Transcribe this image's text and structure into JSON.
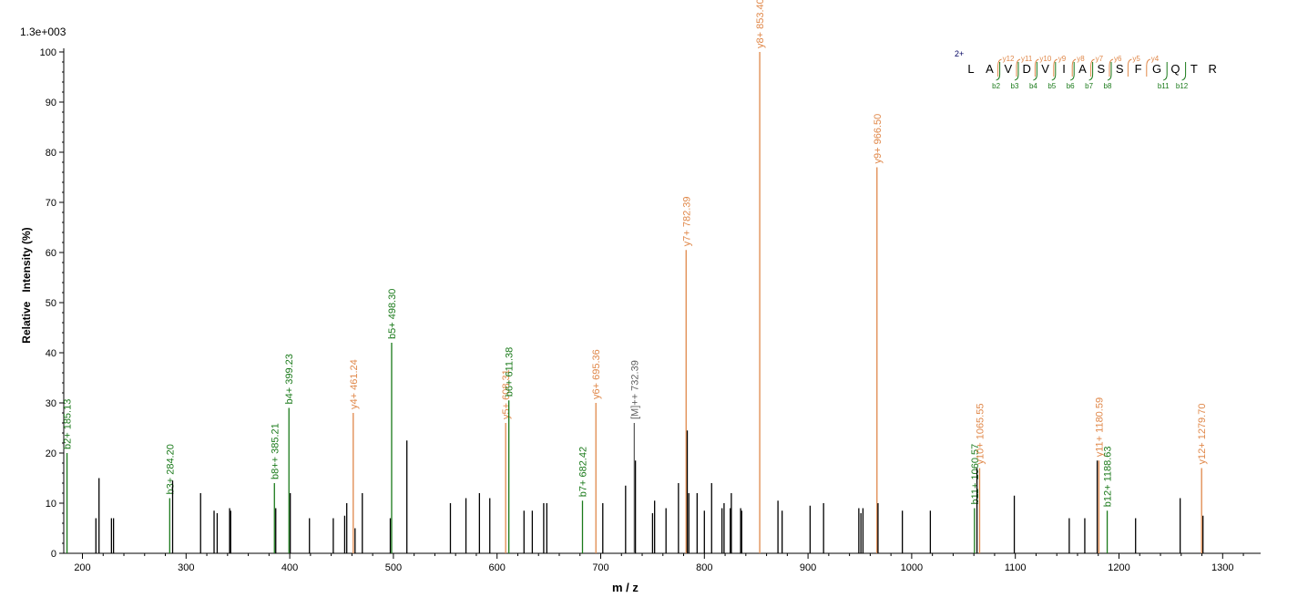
{
  "chart_data": {
    "type": "bar",
    "subtype": "mass-spectrum",
    "scale_label": "1.3e+003",
    "xlabel": "m / z",
    "ylabel": "Relative   Intensity (%)",
    "xlim": [
      170,
      1390
    ],
    "ylim": [
      0,
      100
    ],
    "xticks": [
      200,
      300,
      400,
      500,
      600,
      700,
      800,
      900,
      1000,
      1100,
      1200,
      1300
    ],
    "yticks": [
      0,
      10,
      20,
      30,
      40,
      50,
      60,
      70,
      80,
      90,
      100
    ],
    "colors": {
      "b_ion": "#1a7a1a",
      "y_ion": "#e0884a",
      "precursor": "#606060",
      "unassigned": "#000000"
    },
    "peaks": [
      {
        "mz": 185.13,
        "intensity": 20,
        "type": "b",
        "label": "b2+ 185.13"
      },
      {
        "mz": 213,
        "intensity": 7,
        "type": "u"
      },
      {
        "mz": 216,
        "intensity": 15,
        "type": "u"
      },
      {
        "mz": 228,
        "intensity": 7,
        "type": "u"
      },
      {
        "mz": 230,
        "intensity": 7,
        "type": "u"
      },
      {
        "mz": 284.2,
        "intensity": 11,
        "type": "b",
        "label": "b3+ 284.20"
      },
      {
        "mz": 287,
        "intensity": 14.5,
        "type": "u"
      },
      {
        "mz": 314,
        "intensity": 12,
        "type": "u"
      },
      {
        "mz": 327,
        "intensity": 8.5,
        "type": "u"
      },
      {
        "mz": 330,
        "intensity": 8,
        "type": "u"
      },
      {
        "mz": 342,
        "intensity": 9,
        "type": "u"
      },
      {
        "mz": 343,
        "intensity": 8.5,
        "type": "u"
      },
      {
        "mz": 385.21,
        "intensity": 14,
        "type": "b",
        "label": "b8++ 385.21"
      },
      {
        "mz": 386.5,
        "intensity": 9,
        "type": "u"
      },
      {
        "mz": 399.23,
        "intensity": 29,
        "type": "b",
        "label": "b4+ 399.23"
      },
      {
        "mz": 400.5,
        "intensity": 12,
        "type": "u"
      },
      {
        "mz": 419,
        "intensity": 7,
        "type": "u"
      },
      {
        "mz": 442,
        "intensity": 7,
        "type": "u"
      },
      {
        "mz": 453,
        "intensity": 7.5,
        "type": "u"
      },
      {
        "mz": 455,
        "intensity": 10,
        "type": "u"
      },
      {
        "mz": 461.24,
        "intensity": 28,
        "type": "y",
        "label": "y4+ 461.24"
      },
      {
        "mz": 463,
        "intensity": 5,
        "type": "u"
      },
      {
        "mz": 470,
        "intensity": 12,
        "type": "u"
      },
      {
        "mz": 497,
        "intensity": 7,
        "type": "u"
      },
      {
        "mz": 498.3,
        "intensity": 42,
        "type": "b",
        "label": "b5+ 498.30"
      },
      {
        "mz": 513,
        "intensity": 22.5,
        "type": "u"
      },
      {
        "mz": 555,
        "intensity": 10,
        "type": "u"
      },
      {
        "mz": 570,
        "intensity": 11,
        "type": "u"
      },
      {
        "mz": 583,
        "intensity": 12,
        "type": "u"
      },
      {
        "mz": 593,
        "intensity": 11,
        "type": "u"
      },
      {
        "mz": 608.31,
        "intensity": 26,
        "type": "y",
        "label": "y5+ 608.31"
      },
      {
        "mz": 611.38,
        "intensity": 30.5,
        "type": "b",
        "label": "b6+ 611.38"
      },
      {
        "mz": 626,
        "intensity": 8.5,
        "type": "u"
      },
      {
        "mz": 634,
        "intensity": 8.5,
        "type": "u"
      },
      {
        "mz": 645,
        "intensity": 10,
        "type": "u"
      },
      {
        "mz": 648,
        "intensity": 10,
        "type": "u"
      },
      {
        "mz": 682.42,
        "intensity": 10.5,
        "type": "b",
        "label": "b7+ 682.42"
      },
      {
        "mz": 695.36,
        "intensity": 30,
        "type": "y",
        "label": "y6+ 695.36"
      },
      {
        "mz": 702,
        "intensity": 10,
        "type": "u"
      },
      {
        "mz": 724,
        "intensity": 13.5,
        "type": "u"
      },
      {
        "mz": 732.39,
        "intensity": 26,
        "type": "p",
        "label": "[M]++ 732.39"
      },
      {
        "mz": 733.5,
        "intensity": 18.5,
        "type": "u"
      },
      {
        "mz": 750,
        "intensity": 8,
        "type": "u"
      },
      {
        "mz": 752,
        "intensity": 10.5,
        "type": "u"
      },
      {
        "mz": 763,
        "intensity": 9,
        "type": "u"
      },
      {
        "mz": 775,
        "intensity": 14,
        "type": "u"
      },
      {
        "mz": 782.39,
        "intensity": 60.5,
        "type": "y",
        "label": "y7+ 782.39"
      },
      {
        "mz": 783.5,
        "intensity": 24.5,
        "type": "u"
      },
      {
        "mz": 785,
        "intensity": 12,
        "type": "u"
      },
      {
        "mz": 793,
        "intensity": 12,
        "type": "u"
      },
      {
        "mz": 800,
        "intensity": 8.5,
        "type": "u"
      },
      {
        "mz": 807,
        "intensity": 14,
        "type": "u"
      },
      {
        "mz": 817,
        "intensity": 9,
        "type": "u"
      },
      {
        "mz": 819,
        "intensity": 10,
        "type": "u"
      },
      {
        "mz": 825,
        "intensity": 9,
        "type": "u"
      },
      {
        "mz": 826,
        "intensity": 12,
        "type": "u"
      },
      {
        "mz": 835,
        "intensity": 9,
        "type": "u"
      },
      {
        "mz": 836,
        "intensity": 8.5,
        "type": "u"
      },
      {
        "mz": 853.4,
        "intensity": 100,
        "type": "y",
        "label": "y8+ 853.40"
      },
      {
        "mz": 871,
        "intensity": 10.5,
        "type": "u"
      },
      {
        "mz": 875,
        "intensity": 8.5,
        "type": "u"
      },
      {
        "mz": 902,
        "intensity": 9.5,
        "type": "u"
      },
      {
        "mz": 915,
        "intensity": 10,
        "type": "u"
      },
      {
        "mz": 949,
        "intensity": 9,
        "type": "u"
      },
      {
        "mz": 951,
        "intensity": 8,
        "type": "u"
      },
      {
        "mz": 953,
        "intensity": 9,
        "type": "u"
      },
      {
        "mz": 966.5,
        "intensity": 77,
        "type": "y",
        "label": "y9+ 966.50"
      },
      {
        "mz": 967.5,
        "intensity": 10,
        "type": "u"
      },
      {
        "mz": 991,
        "intensity": 8.5,
        "type": "u"
      },
      {
        "mz": 1018,
        "intensity": 8.5,
        "type": "u"
      },
      {
        "mz": 1060.57,
        "intensity": 9,
        "type": "b",
        "label": "b11+ 1060.57"
      },
      {
        "mz": 1063,
        "intensity": 17,
        "type": "u"
      },
      {
        "mz": 1065.55,
        "intensity": 17,
        "type": "y",
        "label": "y10+ 1065.55"
      },
      {
        "mz": 1099,
        "intensity": 11.5,
        "type": "u"
      },
      {
        "mz": 1152,
        "intensity": 7,
        "type": "u"
      },
      {
        "mz": 1167,
        "intensity": 7,
        "type": "u"
      },
      {
        "mz": 1179,
        "intensity": 18.5,
        "type": "u"
      },
      {
        "mz": 1180.59,
        "intensity": 18.5,
        "type": "y",
        "label": "y11+ 1180.59"
      },
      {
        "mz": 1188.63,
        "intensity": 8.5,
        "type": "b",
        "label": "b12+ 1188.63"
      },
      {
        "mz": 1216,
        "intensity": 7,
        "type": "u"
      },
      {
        "mz": 1259,
        "intensity": 11,
        "type": "u"
      },
      {
        "mz": 1279.7,
        "intensity": 17,
        "type": "y",
        "label": "y12+ 1279.70"
      },
      {
        "mz": 1281,
        "intensity": 7.5,
        "type": "u"
      }
    ],
    "sequence_annotation": {
      "charge": "2+",
      "residues": [
        "L",
        "A",
        "V",
        "D",
        "V",
        "I",
        "A",
        "S",
        "S",
        "F",
        "G",
        "Q",
        "T",
        "R"
      ],
      "y_ions": [
        {
          "label": "y12",
          "pos": 2
        },
        {
          "label": "y11",
          "pos": 3
        },
        {
          "label": "y10",
          "pos": 4
        },
        {
          "label": "y9",
          "pos": 5
        },
        {
          "label": "y8",
          "pos": 6
        },
        {
          "label": "y7",
          "pos": 7
        },
        {
          "label": "y6",
          "pos": 8
        },
        {
          "label": "y5",
          "pos": 9
        },
        {
          "label": "y4",
          "pos": 10
        }
      ],
      "b_ions": [
        {
          "label": "b2",
          "pos": 2
        },
        {
          "label": "b3",
          "pos": 3
        },
        {
          "label": "b4",
          "pos": 4
        },
        {
          "label": "b5",
          "pos": 5
        },
        {
          "label": "b6",
          "pos": 6
        },
        {
          "label": "b7",
          "pos": 7
        },
        {
          "label": "b8",
          "pos": 8
        },
        {
          "label": "b11",
          "pos": 11
        },
        {
          "label": "b12",
          "pos": 12
        }
      ]
    }
  }
}
